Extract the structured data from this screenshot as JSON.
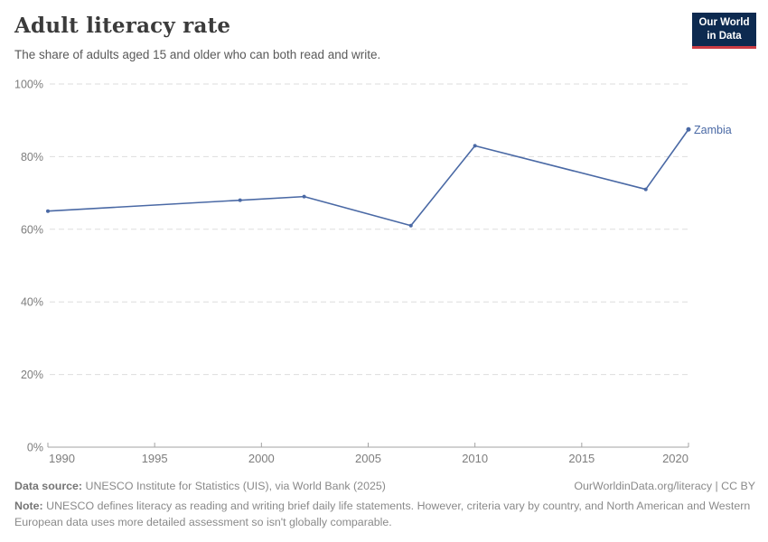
{
  "header": {
    "title": "Adult literacy rate",
    "subtitle": "The share of adults aged 15 and older who can both read and write.",
    "logo": {
      "line1": "Our World",
      "line2": "in Data",
      "bg_color": "#0d2a50",
      "bar_color": "#cc3c44"
    }
  },
  "chart_data": {
    "type": "line",
    "title": "Adult literacy rate",
    "subtitle": "The share of adults aged 15 and older who can both read and write.",
    "xlabel": "",
    "ylabel": "",
    "xlim": [
      1990,
      2020
    ],
    "ylim": [
      0,
      100
    ],
    "xticks": [
      1990,
      1995,
      2000,
      2005,
      2010,
      2015,
      2020
    ],
    "yticks": [
      0,
      20,
      40,
      60,
      80,
      100
    ],
    "ytick_suffix": "%",
    "grid": true,
    "legend_position": "end-of-line",
    "colors": {
      "gridline": "#dddddd",
      "axis": "#a3a3a3",
      "tick_text": "#7d7d7d"
    },
    "series": [
      {
        "name": "Zambia",
        "color": "#4a69a5",
        "points": [
          {
            "x": 1990,
            "y": 65
          },
          {
            "x": 1999,
            "y": 68
          },
          {
            "x": 2002,
            "y": 69
          },
          {
            "x": 2007,
            "y": 61
          },
          {
            "x": 2010,
            "y": 83
          },
          {
            "x": 2018,
            "y": 71
          },
          {
            "x": 2020,
            "y": 87.5
          }
        ]
      }
    ]
  },
  "footer": {
    "datasource_label": "Data source:",
    "datasource_text": " UNESCO Institute for Statistics (UIS), via World Bank (2025)",
    "link_text": "OurWorldinData.org/literacy | CC BY",
    "note_label": "Note:",
    "note_text": " UNESCO defines literacy as reading and writing brief daily life statements. However, criteria vary by country, and North American and Western European data uses more detailed assessment so isn't globally comparable."
  }
}
